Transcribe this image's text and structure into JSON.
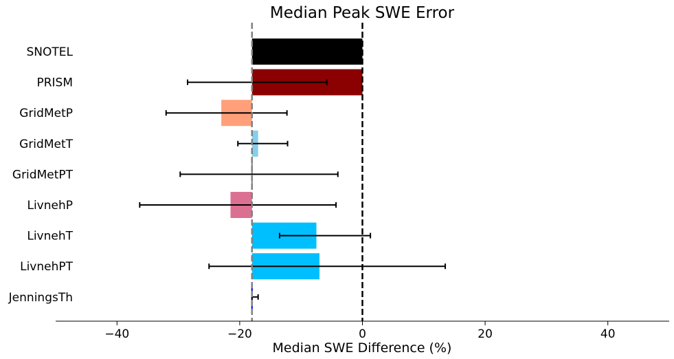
{
  "chart_data": {
    "type": "bar",
    "orientation": "horizontal",
    "title": "Median Peak SWE Error",
    "xlabel": "Median SWE Difference (%)",
    "ylabel": "",
    "xlim": [
      -50,
      50
    ],
    "xticks": [
      -40,
      -20,
      0,
      20,
      40
    ],
    "xtick_labels": [
      "−40",
      "−20",
      "0",
      "20",
      "40"
    ],
    "grid": false,
    "baseline": -18,
    "reference_lines": [
      {
        "value": -18,
        "color": "#808080",
        "style": "dashed"
      },
      {
        "value": 0,
        "color": "#000000",
        "style": "dashed"
      }
    ],
    "categories": [
      "SNOTEL",
      "PRISM",
      "GridMetP",
      "GridMetT",
      "GridMetPT",
      "LivnehP",
      "LivnehT",
      "LivnehPT",
      "JenningsTh"
    ],
    "values": [
      0,
      0,
      -23,
      -17,
      -18,
      -21.5,
      -7.5,
      -7,
      -18
    ],
    "error_low": [
      0,
      -28.5,
      -32,
      -20.3,
      -29.7,
      -36.3,
      -13.5,
      -25,
      -18
    ],
    "error_high": [
      0,
      -5.8,
      -12.3,
      -12.2,
      -4,
      -4.3,
      1.3,
      13.5,
      -17
    ]
  },
  "colors": {
    "bars": [
      "#000000",
      "#8b0000",
      "#ffa07a",
      "#87ceeb",
      "#808080",
      "#db7093",
      "#00bfff",
      "#00bfff",
      "#0000cd"
    ],
    "error_bar": "#000000",
    "axis": "#000000"
  }
}
